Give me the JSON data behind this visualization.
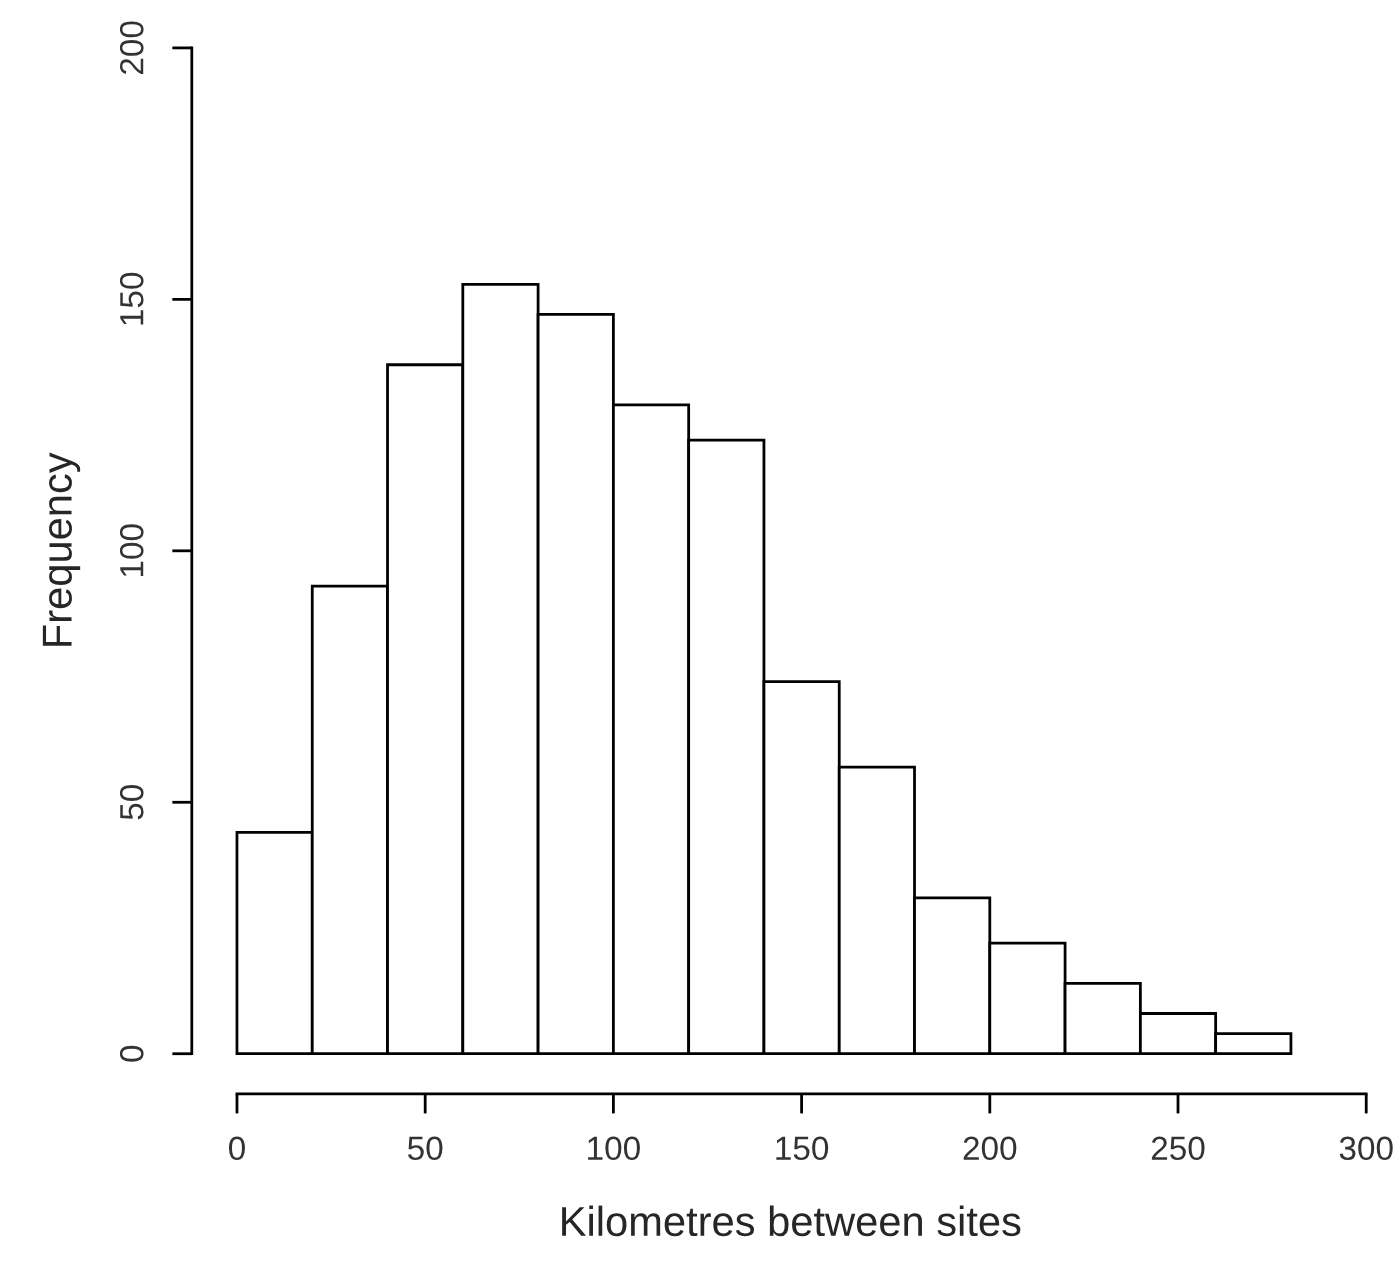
{
  "chart_data": {
    "type": "histogram",
    "xlabel": "Kilometres between sites",
    "ylabel": "Frequency",
    "bins": [
      0,
      20,
      40,
      60,
      80,
      100,
      120,
      140,
      160,
      180,
      200,
      220,
      240,
      260,
      280
    ],
    "values": [
      44,
      93,
      137,
      153,
      147,
      129,
      122,
      74,
      57,
      31,
      22,
      14,
      8,
      4
    ],
    "color": "#ffffff",
    "xlim": [
      0,
      300
    ],
    "xticks": [
      0,
      50,
      100,
      150,
      200,
      250,
      300
    ],
    "ylim": [
      0,
      200
    ],
    "yticks": [
      0,
      50,
      100,
      150,
      200
    ],
    "grid": false
  }
}
